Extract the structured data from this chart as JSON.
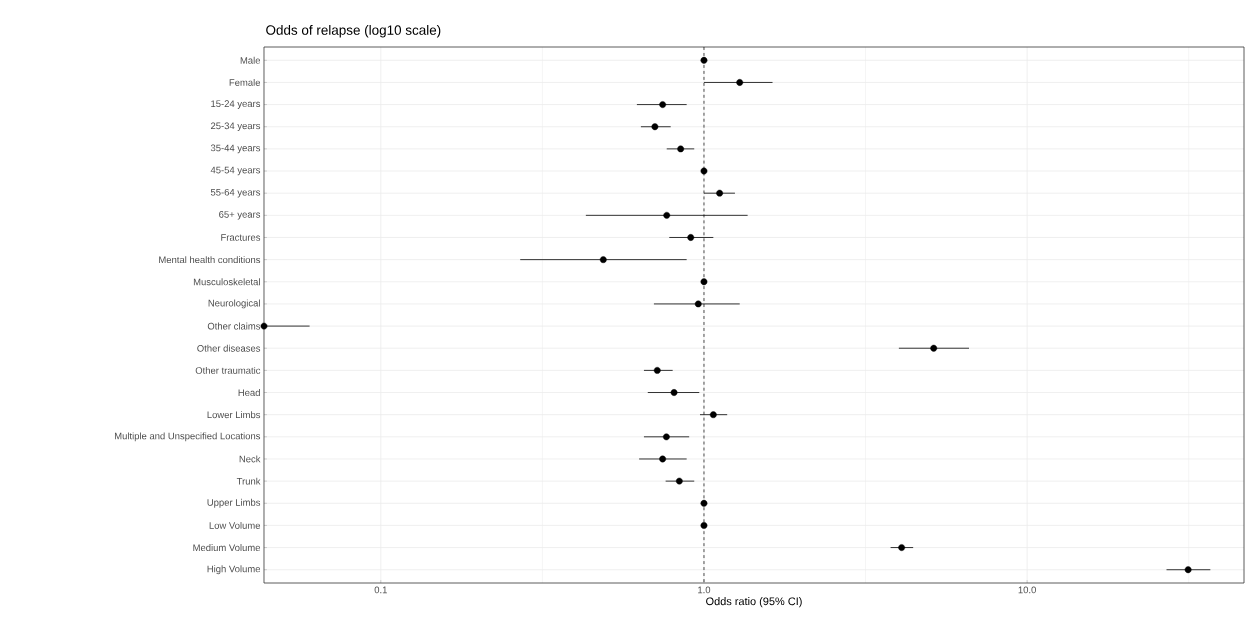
{
  "chart_data": {
    "type": "scatter",
    "title": "Odds of relapse (log10 scale)",
    "xlabel": "Odds ratio (95% CI)",
    "categories": [
      "Male",
      "Female",
      "15-24 years",
      "25-34 years",
      "35-44 years",
      "45-54 years",
      "55-64 years",
      "65+ years",
      "Fractures",
      "Mental health conditions",
      "Musculoskeletal",
      "Neurological",
      "Other claims",
      "Other diseases",
      "Other traumatic",
      "Head",
      "Lower Limbs",
      "Multiple and Unspecified Locations",
      "Neck",
      "Trunk",
      "Upper Limbs",
      "Low Volume",
      "Medium Volume",
      "High Volume"
    ],
    "orientation": "horizontal",
    "values": [
      1.0,
      1.29,
      0.745,
      0.705,
      0.847,
      1.0,
      1.118,
      0.767,
      0.91,
      0.488,
      1.0,
      0.96,
      0.0435,
      5.14,
      0.717,
      0.808,
      1.069,
      0.765,
      0.745,
      0.839,
      1.0,
      1.0,
      4.09,
      31.5
    ],
    "errors": [
      null,
      [
        1.0,
        1.63
      ],
      [
        0.62,
        0.884
      ],
      [
        0.638,
        0.789
      ],
      [
        0.767,
        0.933
      ],
      null,
      [
        1.0,
        1.247
      ],
      [
        0.431,
        1.365
      ],
      [
        0.781,
        1.069
      ],
      [
        0.27,
        0.884
      ],
      null,
      [
        0.7,
        1.29
      ],
      [
        0.0435,
        0.0602
      ],
      [
        4.01,
        6.61
      ],
      [
        0.652,
        0.8
      ],
      [
        0.67,
        0.967
      ],
      [
        0.972,
        1.18
      ],
      [
        0.652,
        0.9
      ],
      [
        0.63,
        0.884
      ],
      [
        0.761,
        0.933
      ],
      null,
      null,
      [
        3.78,
        4.44
      ],
      [
        27.0,
        36.9
      ]
    ],
    "color": "#000000",
    "marker": "circle",
    "log": "x",
    "grid": true,
    "xlim": [
      0.0435,
      46.9
    ],
    "xticks": [
      {
        "value": 0.1,
        "label": "0.1"
      },
      {
        "value": 1,
        "label": "1.0"
      },
      {
        "value": 10,
        "label": "10.0"
      }
    ],
    "ref_lines": [
      {
        "axis": "x",
        "value": 1,
        "line_style": "dashed",
        "color": "#000000"
      }
    ]
  }
}
